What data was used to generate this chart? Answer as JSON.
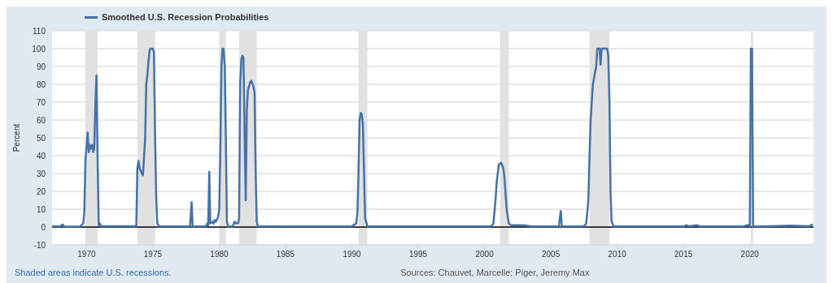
{
  "chart_data": {
    "type": "line",
    "ylabel": "Percent",
    "annotations": [
      "Shaded areas indicate U.S. recessions.",
      "Sources: Chauvet, Marcelle; Piger, Jeremy Max"
    ],
    "x": [
      1967.42,
      1968.0,
      1968.2,
      1968.3,
      1969.5,
      1969.75,
      1969.83,
      1969.92,
      1970.0,
      1970.08,
      1970.17,
      1970.25,
      1970.33,
      1970.42,
      1970.5,
      1970.58,
      1970.67,
      1970.75,
      1970.83,
      1970.92,
      1971.0,
      1971.1,
      1973.6,
      1973.75,
      1973.83,
      1973.92,
      1974.0,
      1974.17,
      1974.25,
      1974.42,
      1974.5,
      1974.58,
      1974.75,
      1974.83,
      1975.0,
      1975.08,
      1975.17,
      1975.25,
      1975.33,
      1975.5,
      1977.8,
      1977.92,
      1978.0,
      1979.0,
      1979.1,
      1979.17,
      1979.25,
      1979.33,
      1979.5,
      1979.58,
      1979.67,
      1979.75,
      1979.83,
      1979.92,
      1980.0,
      1980.08,
      1980.17,
      1980.25,
      1980.33,
      1980.42,
      1980.5,
      1980.58,
      1980.67,
      1981.0,
      1981.17,
      1981.25,
      1981.42,
      1981.5,
      1981.58,
      1981.67,
      1981.75,
      1981.83,
      1981.92,
      1982.0,
      1982.08,
      1982.17,
      1982.33,
      1982.42,
      1982.58,
      1982.67,
      1982.75,
      1982.83,
      1982.92,
      1983.2,
      1990.0,
      1990.33,
      1990.42,
      1990.5,
      1990.58,
      1990.67,
      1990.75,
      1990.83,
      1990.92,
      1991.0,
      1991.17,
      1991.5,
      2000.5,
      2000.67,
      2000.83,
      2000.92,
      2001.08,
      2001.25,
      2001.42,
      2001.5,
      2001.67,
      2001.83,
      2002.0,
      2003.0,
      2003.5,
      2005.6,
      2005.75,
      2005.83,
      2007.5,
      2007.67,
      2007.83,
      2007.92,
      2008.0,
      2008.17,
      2008.42,
      2008.5,
      2008.67,
      2008.75,
      2008.83,
      2009.0,
      2009.25,
      2009.33,
      2009.42,
      2009.5,
      2009.58,
      2009.75,
      2015.0,
      2015.2,
      2015.4,
      2016.0,
      2016.3,
      2019.5,
      2019.75,
      2019.92,
      2020.0,
      2020.08,
      2020.17,
      2020.25,
      2021.0,
      2023.0,
      2024.5,
      2024.75
    ],
    "series": [
      {
        "name": "Smoothed U.S. Recession Probabilities",
        "color": "#4572a7",
        "values": [
          0.5,
          0.3,
          1.5,
          0.2,
          0.3,
          2,
          8,
          38,
          45,
          53,
          42,
          46,
          44,
          46,
          42,
          44,
          70,
          85,
          40,
          1,
          2,
          0.5,
          0.5,
          0.5,
          33,
          37,
          33,
          30,
          29,
          50,
          80,
          85,
          99,
          100,
          100,
          98,
          50,
          17,
          2,
          0.3,
          0.3,
          14,
          0.3,
          0.5,
          2,
          1,
          31,
          2,
          3,
          2,
          4,
          3,
          4,
          6,
          10,
          40,
          90,
          100,
          100,
          90,
          50,
          3,
          0.3,
          0.3,
          3,
          2,
          2,
          5,
          80,
          94,
          96,
          95,
          50,
          15,
          65,
          77,
          81,
          82,
          79,
          75,
          30,
          3,
          0.5,
          0.3,
          0.5,
          2,
          8,
          30,
          60,
          64,
          63,
          58,
          30,
          5,
          0.5,
          0.3,
          0.3,
          2,
          15,
          25,
          35,
          36,
          33,
          28,
          10,
          2,
          1,
          1,
          0.3,
          0.3,
          9,
          0.3,
          0.5,
          2,
          15,
          40,
          60,
          80,
          90,
          100,
          100,
          91,
          100,
          100,
          100,
          96,
          70,
          20,
          3,
          0.3,
          0.3,
          1,
          0.5,
          1,
          0.3,
          0.3,
          1,
          1,
          0.3,
          100,
          100,
          0.3,
          0.3,
          0.8,
          0.5,
          1.5
        ]
      }
    ],
    "xlim": [
      1967.4,
      2024.8
    ],
    "xticks": [
      1970,
      1975,
      1980,
      1985,
      1990,
      1995,
      2000,
      2005,
      2010,
      2015,
      2020
    ],
    "ylim": [
      -10,
      110
    ],
    "yticks": [
      -10,
      0,
      10,
      20,
      30,
      40,
      50,
      60,
      70,
      80,
      90,
      100,
      110
    ],
    "grid": "y",
    "legend": "top left",
    "marker": "none",
    "line_style": "solid",
    "ref_lines": [
      {
        "axis": "y",
        "value": 0,
        "color": "#000000"
      }
    ],
    "bands": [
      {
        "axis": "x",
        "from": 1969.92,
        "to": 1970.83,
        "color": "#e1e1e1"
      },
      {
        "axis": "x",
        "from": 1973.83,
        "to": 1975.17,
        "color": "#e1e1e1"
      },
      {
        "axis": "x",
        "from": 1980.0,
        "to": 1980.5,
        "color": "#e1e1e1"
      },
      {
        "axis": "x",
        "from": 1981.5,
        "to": 1982.83,
        "color": "#e1e1e1"
      },
      {
        "axis": "x",
        "from": 1990.5,
        "to": 1991.17,
        "color": "#e1e1e1"
      },
      {
        "axis": "x",
        "from": 2001.17,
        "to": 2001.83,
        "color": "#e1e1e1"
      },
      {
        "axis": "x",
        "from": 2007.92,
        "to": 2009.42,
        "color": "#e1e1e1"
      },
      {
        "axis": "x",
        "from": 2020.08,
        "to": 2020.25,
        "color": "#e1e1e1"
      }
    ]
  }
}
